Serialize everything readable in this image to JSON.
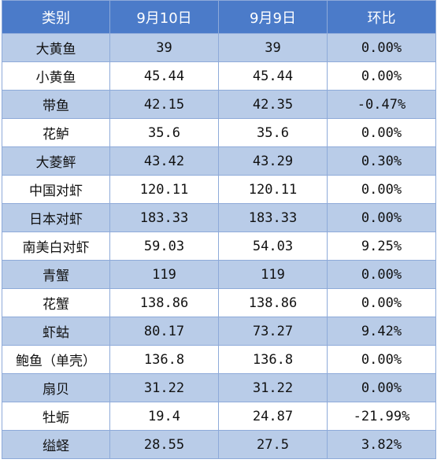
{
  "table": {
    "headers": [
      "类别",
      "9月10日",
      "9月9日",
      "环比"
    ],
    "rows": [
      [
        "大黄鱼",
        "39",
        "39",
        "0.00%"
      ],
      [
        "小黄鱼",
        "45.44",
        "45.44",
        "0.00%"
      ],
      [
        "带鱼",
        "42.15",
        "42.35",
        "-0.47%"
      ],
      [
        "花鲈",
        "35.6",
        "35.6",
        "0.00%"
      ],
      [
        "大菱鲆",
        "43.42",
        "43.29",
        "0.30%"
      ],
      [
        "中国对虾",
        "120.11",
        "120.11",
        "0.00%"
      ],
      [
        "日本对虾",
        "183.33",
        "183.33",
        "0.00%"
      ],
      [
        "南美白对虾",
        "59.03",
        "54.03",
        "9.25%"
      ],
      [
        "青蟹",
        "119",
        "119",
        "0.00%"
      ],
      [
        "花蟹",
        "138.86",
        "138.86",
        "0.00%"
      ],
      [
        "虾蛄",
        "80.17",
        "73.27",
        "9.42%"
      ],
      [
        "鲍鱼（单壳）",
        "136.8",
        "136.8",
        "0.00%"
      ],
      [
        "扇贝",
        "31.22",
        "31.22",
        "0.00%"
      ],
      [
        "牡蛎",
        "19.4",
        "24.87",
        "-21.99%"
      ],
      [
        "缢蛏",
        "28.55",
        "27.5",
        "3.82%"
      ]
    ]
  },
  "colors": {
    "header_bg": "#4b7bc9",
    "header_text": "#ffffff",
    "row_shade": "#b9cce8",
    "row_plain": "#ffffff",
    "border": "#8eaad9"
  }
}
